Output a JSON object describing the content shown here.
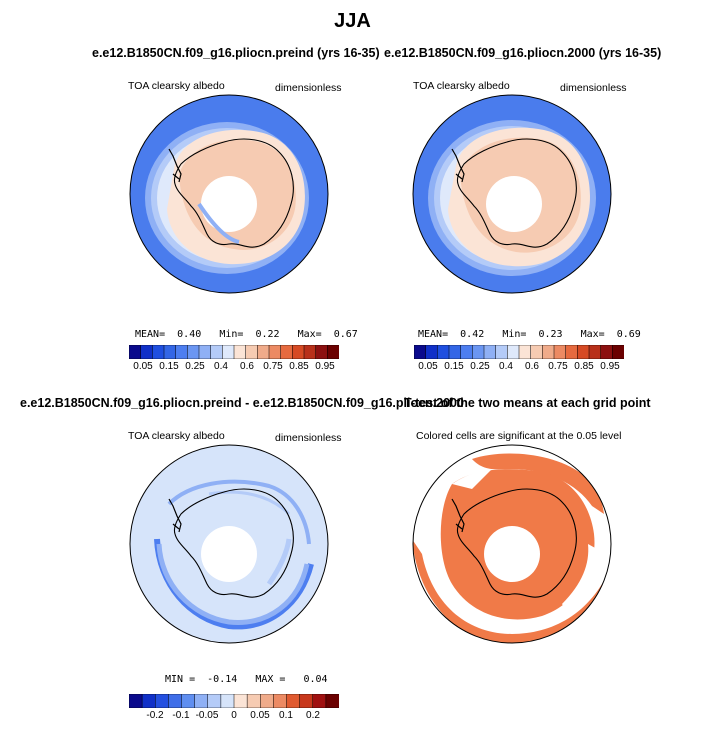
{
  "title": "JJA",
  "panels": [
    {
      "case_title": "e.e12.B1850CN.f09_g16.pliocn.preind (yrs 16-35)",
      "variable": "TOA clearsky albedo",
      "units": "dimensionless",
      "stats": {
        "mean_label": "MEAN=",
        "mean": "0.40",
        "min_label": "Min=",
        "min": "0.22",
        "max_label": "Max=",
        "max": "0.67"
      },
      "colorbar_ticks": [
        "0.05",
        "0.15",
        "0.25",
        "0.4",
        "0.6",
        "0.75",
        "0.85",
        "0.95"
      ]
    },
    {
      "case_title": "e.e12.B1850CN.f09_g16.pliocn.2000 (yrs 16-35)",
      "variable": "TOA clearsky albedo",
      "units": "dimensionless",
      "stats": {
        "mean_label": "MEAN=",
        "mean": "0.42",
        "min_label": "Min=",
        "min": "0.23",
        "max_label": "Max=",
        "max": "0.69"
      },
      "colorbar_ticks": [
        "0.05",
        "0.15",
        "0.25",
        "0.4",
        "0.6",
        "0.75",
        "0.85",
        "0.95"
      ]
    },
    {
      "case_title": "e.e12.B1850CN.f09_g16.pliocn.preind - e.e12.B1850CN.f09_g16.pliocn.2000",
      "variable": "TOA clearsky albedo",
      "units": "dimensionless",
      "stats": {
        "min_label": "MIN =",
        "min": "-0.14",
        "max_label": "MAX =",
        "max": "0.04"
      },
      "colorbar_ticks": [
        "-0.2",
        "-0.1",
        "-0.05",
        "0",
        "0.05",
        "0.1",
        "0.2"
      ]
    },
    {
      "case_title": "T-test of the two means at each grid point",
      "subtitle": "Colored cells are significant at the 0.05 level"
    }
  ],
  "chart_data": [
    {
      "type": "heatmap",
      "projection": "south-polar-stereographic",
      "title": "e.e12.B1850CN.f09_g16.pliocn.preind (yrs 16-35)",
      "variable": "TOA clearsky albedo",
      "units": "dimensionless",
      "mean": 0.4,
      "min": 0.22,
      "max": 0.67,
      "levels": [
        0.05,
        0.1,
        0.15,
        0.2,
        0.25,
        0.3,
        0.35,
        0.4,
        0.5,
        0.6,
        0.65,
        0.7,
        0.75,
        0.8,
        0.85,
        0.9,
        0.95
      ],
      "colors": [
        "#0a0a8c",
        "#1030c8",
        "#1f4fe0",
        "#3366e6",
        "#4d7ef0",
        "#6b96f2",
        "#8fb0f5",
        "#b4cbf8",
        "#dfe9fb",
        "#fbe4d6",
        "#f6cbb2",
        "#f0ab8a",
        "#ec8a63",
        "#e66a3f",
        "#d64a24",
        "#b8301a",
        "#8c1010",
        "#6b0000"
      ],
      "regions": [
        {
          "region": "open ocean",
          "approx_value": 0.22
        },
        {
          "region": "sea ice",
          "approx_value": 0.55
        },
        {
          "region": "Antarctic continent",
          "approx_value": 0.65
        }
      ]
    },
    {
      "type": "heatmap",
      "projection": "south-polar-stereographic",
      "title": "e.e12.B1850CN.f09_g16.pliocn.2000 (yrs 16-35)",
      "variable": "TOA clearsky albedo",
      "units": "dimensionless",
      "mean": 0.42,
      "min": 0.23,
      "max": 0.69,
      "levels": [
        0.05,
        0.1,
        0.15,
        0.2,
        0.25,
        0.3,
        0.35,
        0.4,
        0.5,
        0.6,
        0.65,
        0.7,
        0.75,
        0.8,
        0.85,
        0.9,
        0.95
      ],
      "colors": [
        "#0a0a8c",
        "#1030c8",
        "#1f4fe0",
        "#3366e6",
        "#4d7ef0",
        "#6b96f2",
        "#8fb0f5",
        "#b4cbf8",
        "#dfe9fb",
        "#fbe4d6",
        "#f6cbb2",
        "#f0ab8a",
        "#ec8a63",
        "#e66a3f",
        "#d64a24",
        "#b8301a",
        "#8c1010",
        "#6b0000"
      ],
      "regions": [
        {
          "region": "open ocean",
          "approx_value": 0.23
        },
        {
          "region": "sea ice",
          "approx_value": 0.58
        },
        {
          "region": "Antarctic continent",
          "approx_value": 0.67
        }
      ]
    },
    {
      "type": "heatmap",
      "projection": "south-polar-stereographic",
      "title": "e.e12.B1850CN.f09_g16.pliocn.preind - e.e12.B1850CN.f09_g16.pliocn.2000",
      "variable": "TOA clearsky albedo",
      "units": "dimensionless",
      "min": -0.14,
      "max": 0.04,
      "levels": [
        -0.3,
        -0.2,
        -0.15,
        -0.1,
        -0.07,
        -0.05,
        -0.03,
        0,
        0.03,
        0.05,
        0.07,
        0.1,
        0.15,
        0.2,
        0.3
      ],
      "colors": [
        "#0a0a8c",
        "#1030c8",
        "#2450e0",
        "#3f6ee8",
        "#5f8ef0",
        "#8fb0f5",
        "#b4cbf8",
        "#d6e4fa",
        "#fbe4d6",
        "#f6cbb2",
        "#f0ab8a",
        "#ec8a63",
        "#e05a30",
        "#c8381c",
        "#a01010",
        "#6b0000"
      ],
      "regions": [
        {
          "region": "most of domain",
          "approx_value": -0.02
        },
        {
          "region": "sea ice edge band",
          "approx_value": -0.12
        }
      ]
    },
    {
      "type": "heatmap",
      "projection": "south-polar-stereographic",
      "title": "T-test of the two means at each grid point",
      "subtitle": "Colored cells are significant at the 0.05 level",
      "significant_color": "#f07a48",
      "regions": [
        {
          "region": "continent and inner ring",
          "significant": true
        },
        {
          "region": "sea ice edge band",
          "significant": false
        },
        {
          "region": "outer ocean",
          "significant": true
        }
      ]
    }
  ]
}
